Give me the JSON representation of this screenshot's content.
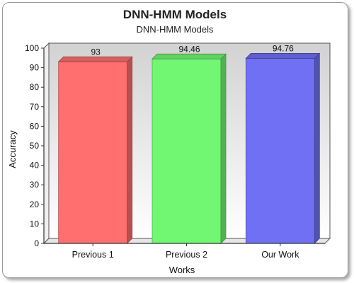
{
  "chart_data": {
    "type": "bar",
    "title": "DNN-HMM Models",
    "subtitle": "DNN-HMM Models",
    "xlabel": "Works",
    "ylabel": "Accuracy",
    "categories": [
      "Previous 1",
      "Previous 2",
      "Our Work"
    ],
    "values": [
      93,
      94.46,
      94.76
    ],
    "value_labels": [
      "93",
      "94.46",
      "94.76"
    ],
    "ylim": [
      0,
      100
    ],
    "yticks": [
      0,
      10,
      20,
      30,
      40,
      50,
      60,
      70,
      80,
      90,
      100
    ],
    "bar_colors": [
      "#ff6f6f",
      "#72f772",
      "#7070f5"
    ],
    "grid": false,
    "legend": "none",
    "style": "3d-bars"
  }
}
